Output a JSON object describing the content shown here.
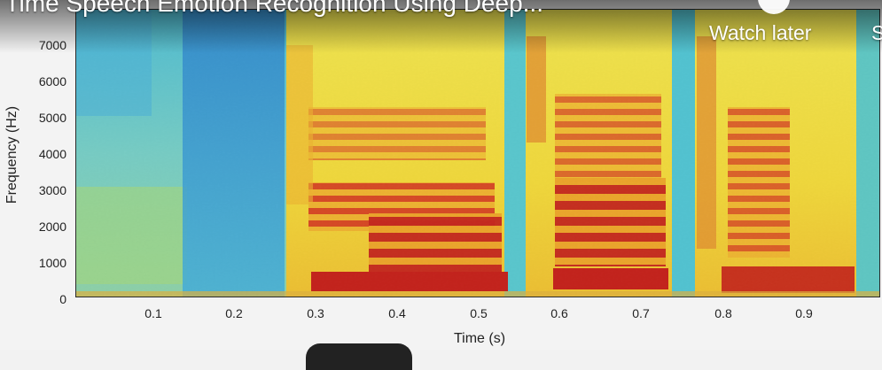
{
  "video": {
    "title": "l Time Speech Emotion Recognition Using Deep...",
    "watch_later_label": "Watch later",
    "share_label": "S"
  },
  "plot": {
    "ylabel": "Frequency (Hz)",
    "xlabel": "Time (s)",
    "yticks": [
      "0",
      "1000",
      "2000",
      "3000",
      "4000",
      "5000",
      "6000",
      "7000"
    ],
    "xticks": [
      "0.1",
      "0.2",
      "0.3",
      "0.4",
      "0.5",
      "0.6",
      "0.7",
      "0.8",
      "0.9"
    ]
  },
  "colors": {
    "low": "#2aa9e0",
    "mid": "#f7e63b",
    "high": "#d9261c",
    "cyan": "#35c6d9"
  }
}
